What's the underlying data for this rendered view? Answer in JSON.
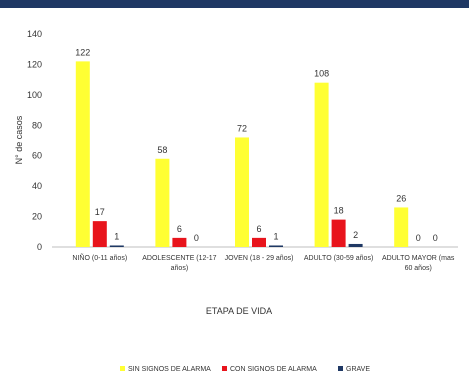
{
  "chart_data": {
    "type": "bar",
    "xlabel": "ETAPA DE VIDA",
    "ylabel": "N° de casos",
    "ylim": [
      0,
      140
    ],
    "yticks": [
      "0",
      "20",
      "40",
      "60",
      "80",
      "100",
      "120",
      "140"
    ],
    "categories": [
      [
        "NIÑO (0-11 años)"
      ],
      [
        "ADOLESCENTE (12-17",
        "años)"
      ],
      [
        "JOVEN (18 - 29 años)"
      ],
      [
        "ADULTO (30-59 años)"
      ],
      [
        "ADULTO MAYOR (mas",
        "60 años)"
      ]
    ],
    "series": [
      {
        "name": "SIN SIGNOS DE ALARMA",
        "color": "#ffff33",
        "values": [
          122,
          58,
          72,
          108,
          26
        ],
        "labels": [
          "122",
          "58",
          "72",
          "108",
          "26"
        ]
      },
      {
        "name": "CON SIGNOS DE ALARMA",
        "color": "#e8141c",
        "values": [
          17,
          6,
          6,
          18,
          0
        ],
        "labels": [
          "17",
          "6",
          "6",
          "18",
          "0"
        ]
      },
      {
        "name": "GRAVE",
        "color": "#1f3864",
        "values": [
          1,
          0,
          1,
          2,
          0
        ],
        "labels": [
          "1",
          "0",
          "1",
          "2",
          "0"
        ]
      }
    ],
    "legend": "bottom",
    "grid": false
  },
  "colors": {
    "top_bar": "#1f3864",
    "axis": "#bfbfbf"
  }
}
